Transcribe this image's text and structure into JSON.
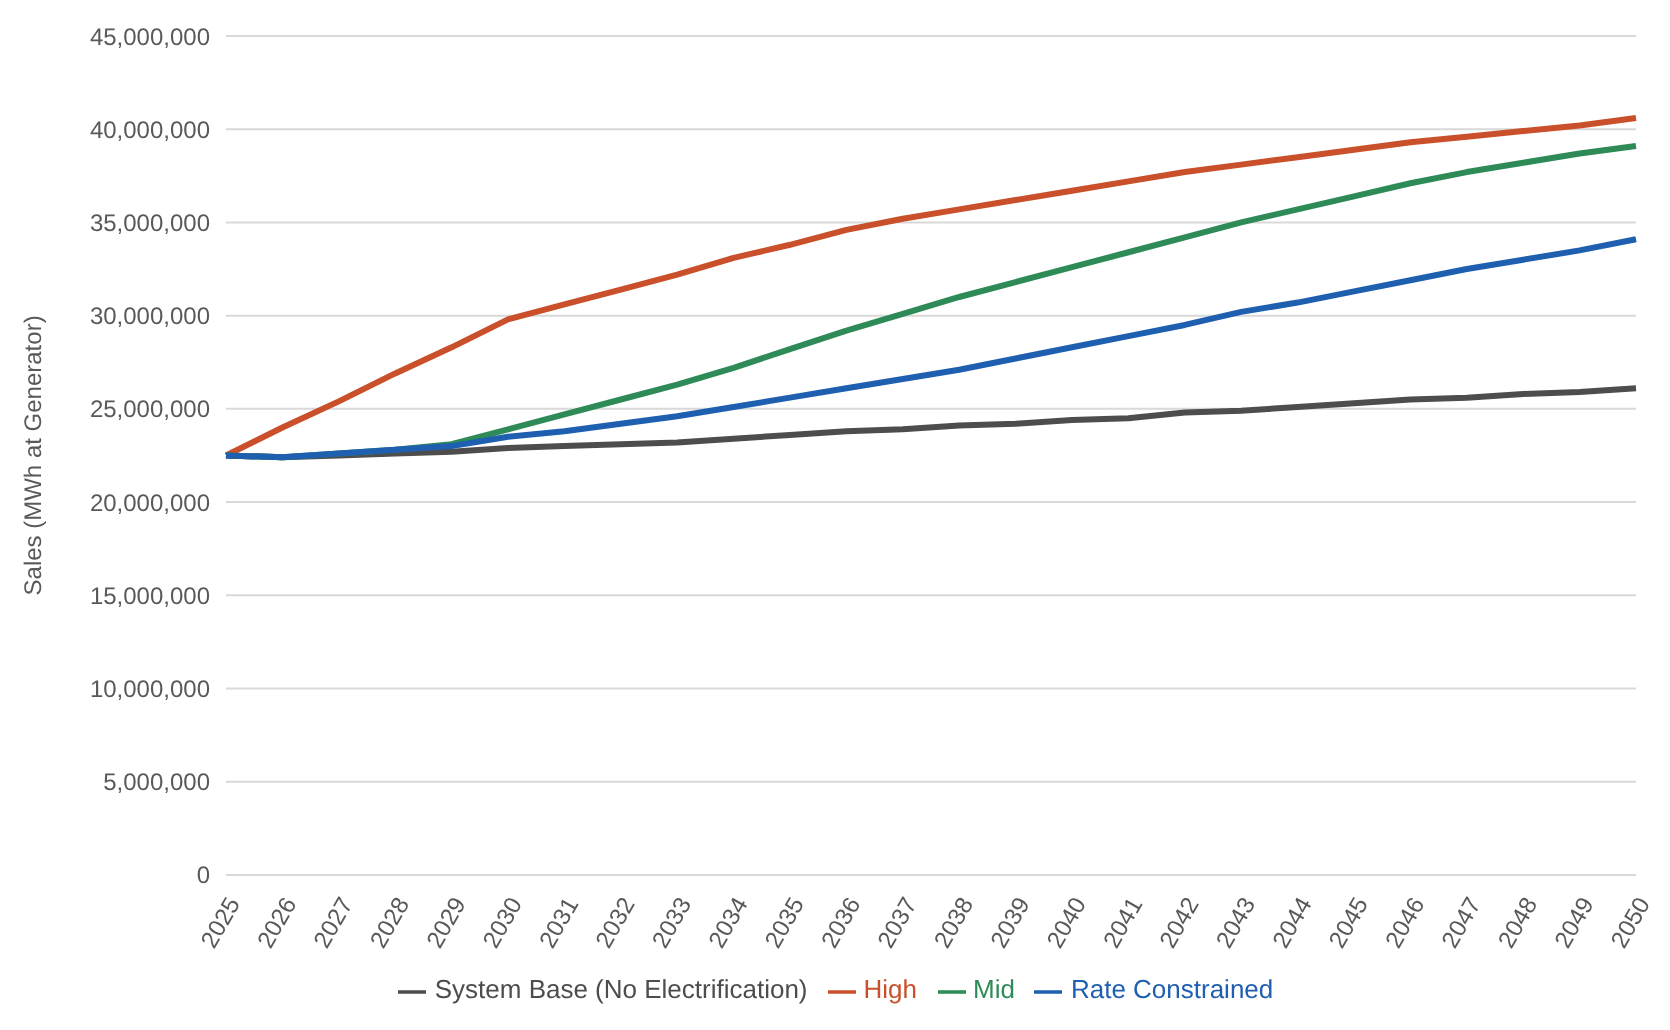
{
  "chart_data": {
    "type": "line",
    "ylabel": "Sales (MWh at Generator)",
    "categories": [
      "2025",
      "2026",
      "2027",
      "2028",
      "2029",
      "2030",
      "2031",
      "2032",
      "2033",
      "2034",
      "2035",
      "2036",
      "2037",
      "2038",
      "2039",
      "2040",
      "2041",
      "2042",
      "2043",
      "2044",
      "2045",
      "2046",
      "2047",
      "2048",
      "2049",
      "2050"
    ],
    "series": [
      {
        "name": "System Base (No Electrification)",
        "color": "#4d4d4d",
        "values": [
          22500000,
          22400000,
          22500000,
          22600000,
          22700000,
          22900000,
          23000000,
          23100000,
          23200000,
          23400000,
          23600000,
          23800000,
          23900000,
          24100000,
          24200000,
          24400000,
          24500000,
          24800000,
          24900000,
          25100000,
          25300000,
          25500000,
          25600000,
          25800000,
          25900000,
          26100000
        ]
      },
      {
        "name": "High",
        "color": "#c9502a",
        "values": [
          22500000,
          24000000,
          25400000,
          26900000,
          28300000,
          29800000,
          30600000,
          31400000,
          32200000,
          33100000,
          33800000,
          34600000,
          35200000,
          35700000,
          36200000,
          36700000,
          37200000,
          37700000,
          38100000,
          38500000,
          38900000,
          39300000,
          39600000,
          39900000,
          40200000,
          40600000
        ]
      },
      {
        "name": "Mid",
        "color": "#2e8b57",
        "values": [
          22500000,
          22400000,
          22600000,
          22800000,
          23100000,
          23900000,
          24700000,
          25500000,
          26300000,
          27200000,
          28200000,
          29200000,
          30100000,
          31000000,
          31800000,
          32600000,
          33400000,
          34200000,
          35000000,
          35700000,
          36400000,
          37100000,
          37700000,
          38200000,
          38700000,
          39100000
        ]
      },
      {
        "name": "Rate Constrained",
        "color": "#1f5fb0",
        "values": [
          22500000,
          22400000,
          22600000,
          22800000,
          23000000,
          23500000,
          23800000,
          24200000,
          24600000,
          25100000,
          25600000,
          26100000,
          26600000,
          27100000,
          27700000,
          28300000,
          28900000,
          29500000,
          30200000,
          30700000,
          31300000,
          31900000,
          32500000,
          33000000,
          33500000,
          34100000
        ]
      }
    ],
    "ylim": [
      0,
      45000000
    ],
    "yticks": [
      0,
      {
        "value": 5000000,
        "label": "5,000,000"
      },
      {
        "value": 10000000,
        "label": "10,000,000"
      },
      {
        "value": 15000000,
        "label": "15,000,000"
      },
      {
        "value": 20000000,
        "label": "20,000,000"
      },
      {
        "value": 25000000,
        "label": "25,000,000"
      },
      {
        "value": 30000000,
        "label": "30,000,000"
      },
      {
        "value": 35000000,
        "label": "35,000,000"
      },
      {
        "value": 40000000,
        "label": "40,000,000"
      },
      {
        "value": 45000000,
        "label": "45,000,000"
      }
    ],
    "grid": "y",
    "legend": "bottom",
    "marker": "none",
    "line_style": "solid"
  }
}
